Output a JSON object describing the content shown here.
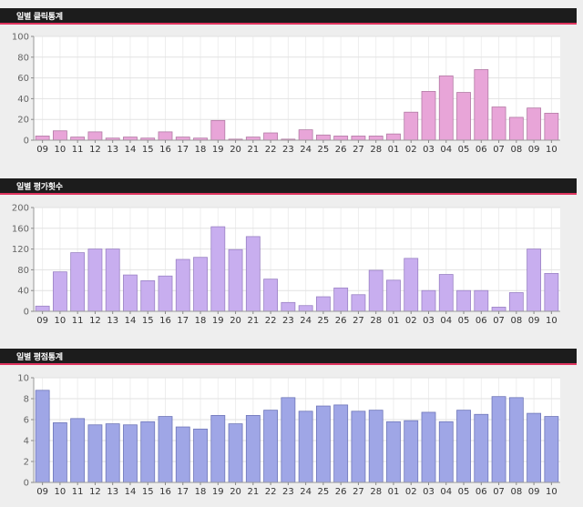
{
  "chart_data": [
    {
      "type": "bar",
      "title": "일별 클릭통계",
      "categories": [
        "09",
        "10",
        "11",
        "12",
        "13",
        "14",
        "15",
        "16",
        "17",
        "18",
        "19",
        "20",
        "21",
        "22",
        "23",
        "24",
        "25",
        "26",
        "27",
        "28",
        "01",
        "02",
        "03",
        "04",
        "05",
        "06",
        "07",
        "08",
        "09",
        "10"
      ],
      "values": [
        4,
        9,
        3,
        8,
        2,
        3,
        2,
        8,
        3,
        2,
        19,
        1,
        3,
        7,
        1,
        10,
        5,
        4,
        4,
        4,
        6,
        27,
        47,
        62,
        46,
        68,
        32,
        22,
        31,
        26
      ],
      "ylim": [
        0,
        100
      ],
      "yticks": [
        0,
        20,
        40,
        60,
        80,
        100
      ],
      "xlabel": "",
      "ylabel": "",
      "grid": true,
      "colors": {
        "fill": "#e8a5d8",
        "stroke": "#b27aa4",
        "tick": "#333333"
      }
    },
    {
      "type": "bar",
      "title": "일별 평가횟수",
      "categories": [
        "09",
        "10",
        "11",
        "12",
        "13",
        "14",
        "15",
        "16",
        "17",
        "18",
        "19",
        "20",
        "21",
        "22",
        "23",
        "24",
        "25",
        "26",
        "27",
        "28",
        "01",
        "02",
        "03",
        "04",
        "05",
        "06",
        "07",
        "08",
        "09",
        "10"
      ],
      "values": [
        10,
        76,
        113,
        120,
        120,
        70,
        59,
        68,
        100,
        104,
        163,
        119,
        144,
        62,
        17,
        11,
        28,
        45,
        32,
        79,
        60,
        102,
        40,
        71,
        40,
        40,
        8,
        36,
        120,
        73
      ],
      "ylim": [
        0,
        200
      ],
      "yticks": [
        0,
        40,
        80,
        120,
        160,
        200
      ],
      "xlabel": "",
      "ylabel": "",
      "grid": true,
      "colors": {
        "fill": "#c8aeef",
        "stroke": "#9a82c4",
        "tick": "#333333"
      }
    },
    {
      "type": "bar",
      "title": "일별 평점통계",
      "categories": [
        "09",
        "10",
        "11",
        "12",
        "13",
        "14",
        "15",
        "16",
        "17",
        "18",
        "19",
        "20",
        "21",
        "22",
        "23",
        "24",
        "25",
        "26",
        "27",
        "28",
        "01",
        "02",
        "03",
        "04",
        "05",
        "06",
        "07",
        "08",
        "09",
        "10"
      ],
      "values": [
        8.8,
        5.7,
        6.1,
        5.5,
        5.6,
        5.5,
        5.8,
        6.3,
        5.3,
        5.1,
        6.4,
        5.6,
        6.4,
        6.9,
        8.1,
        6.8,
        7.3,
        7.4,
        6.8,
        6.9,
        5.8,
        5.9,
        6.7,
        5.8,
        6.9,
        6.5,
        8.2,
        8.1,
        6.6,
        6.3
      ],
      "ylim": [
        0,
        10
      ],
      "yticks": [
        0,
        2,
        4,
        6,
        8,
        10
      ],
      "xlabel": "",
      "ylabel": "",
      "grid": true,
      "colors": {
        "fill": "#9fa6e6",
        "stroke": "#6e76b8",
        "tick": "#333333"
      }
    }
  ]
}
